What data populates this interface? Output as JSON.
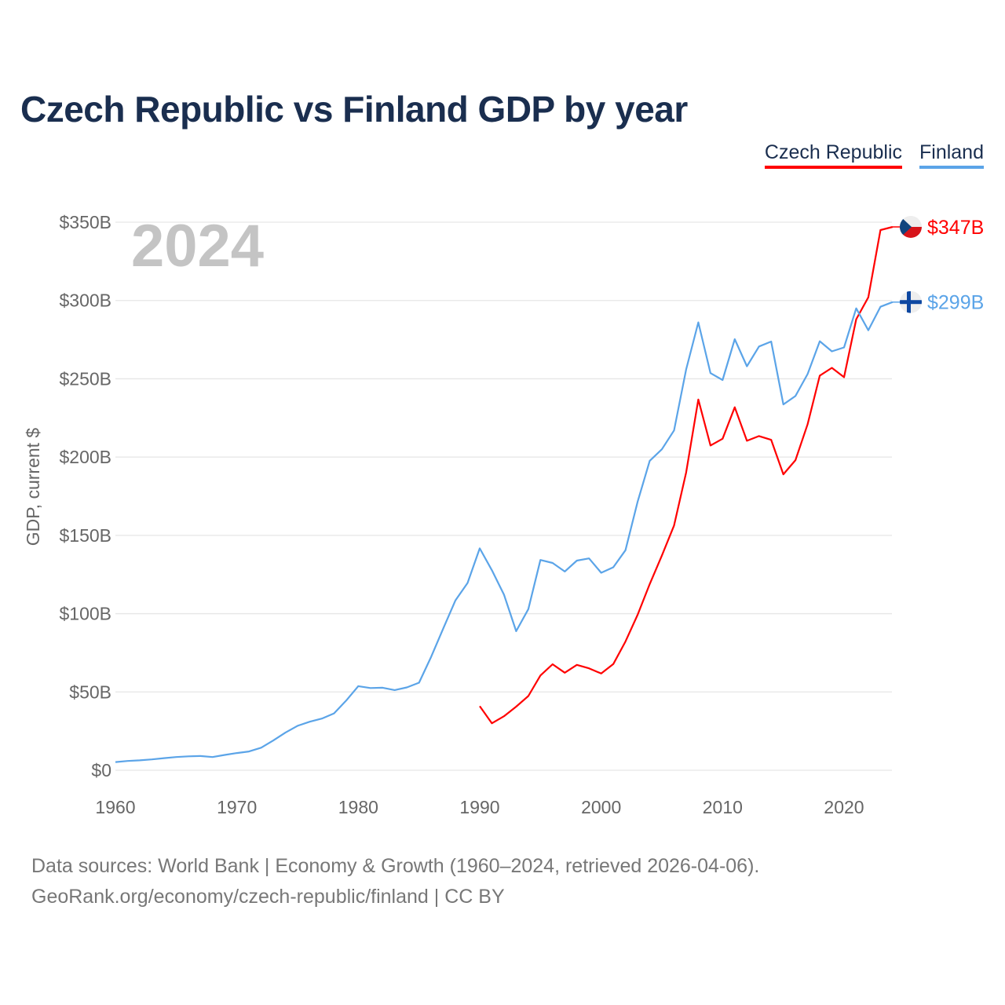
{
  "chart_data": {
    "type": "line",
    "title": "Czech Republic vs Finland GDP by year",
    "ylabel": "GDP, current $",
    "xlabel": "",
    "xlim": [
      1960,
      2024
    ],
    "ylim": [
      0,
      350
    ],
    "x_ticks": [
      1960,
      1970,
      1980,
      1990,
      2000,
      2010,
      2020
    ],
    "x_tick_labels": [
      "1960",
      "1970",
      "1980",
      "1990",
      "2000",
      "2010",
      "2020"
    ],
    "y_ticks": [
      0,
      50,
      100,
      150,
      200,
      250,
      300,
      350
    ],
    "y_tick_labels": [
      "$0",
      "$50B",
      "$100B",
      "$150B",
      "$200B",
      "$250B",
      "$300B",
      "$350B"
    ],
    "grid": true,
    "legend_position": "top-right",
    "year_overlay": "2024",
    "series": [
      {
        "name": "Czech Republic",
        "color": "#ff0000",
        "end_label": "$347B",
        "x": [
          1990,
          1991,
          1992,
          1993,
          1994,
          1995,
          1996,
          1997,
          1998,
          1999,
          2000,
          2001,
          2002,
          2003,
          2004,
          2005,
          2006,
          2007,
          2008,
          2009,
          2010,
          2011,
          2012,
          2013,
          2014,
          2015,
          2016,
          2017,
          2018,
          2019,
          2020,
          2021,
          2022,
          2023,
          2024
        ],
        "values": [
          40.9,
          30.0,
          34.5,
          40.6,
          47.4,
          60.5,
          67.7,
          62.3,
          67.3,
          65.1,
          61.8,
          67.8,
          82.2,
          99.3,
          118.9,
          137.1,
          156.3,
          190.2,
          236.8,
          207.4,
          211.7,
          231.8,
          210.4,
          213.4,
          211.0,
          189.0,
          198.0,
          221.0,
          252.0,
          257.0,
          251.0,
          288.0,
          302.0,
          345.0,
          347.0
        ]
      },
      {
        "name": "Finland",
        "color": "#5ba4e8",
        "end_label": "$299B",
        "x": [
          1960,
          1961,
          1962,
          1963,
          1964,
          1965,
          1966,
          1967,
          1968,
          1969,
          1970,
          1971,
          1972,
          1973,
          1974,
          1975,
          1976,
          1977,
          1978,
          1979,
          1980,
          1981,
          1982,
          1983,
          1984,
          1985,
          1986,
          1987,
          1988,
          1989,
          1990,
          1991,
          1992,
          1993,
          1994,
          1995,
          1996,
          1997,
          1998,
          1999,
          2000,
          2001,
          2002,
          2003,
          2004,
          2005,
          2006,
          2007,
          2008,
          2009,
          2010,
          2011,
          2012,
          2013,
          2014,
          2015,
          2016,
          2017,
          2018,
          2019,
          2020,
          2021,
          2022,
          2023,
          2024
        ],
        "values": [
          5.2,
          5.9,
          6.3,
          6.9,
          7.7,
          8.4,
          8.9,
          9.1,
          8.4,
          9.8,
          11.0,
          12.0,
          14.4,
          19.0,
          24.0,
          28.4,
          31.0,
          33.0,
          36.3,
          44.5,
          53.7,
          52.5,
          52.7,
          51.2,
          52.9,
          55.9,
          72.4,
          90.6,
          108.5,
          119.6,
          141.7,
          127.7,
          112.1,
          88.8,
          102.9,
          134.3,
          132.4,
          126.9,
          133.9,
          135.3,
          126.1,
          129.6,
          140.5,
          171.5,
          197.6,
          205.0,
          217.0,
          256.0,
          286.0,
          253.6,
          249.2,
          275.3,
          258.0,
          270.6,
          273.8,
          233.6,
          239.0,
          253.0,
          274.0,
          267.5,
          270.0,
          295.0,
          281.0,
          296.0,
          299.0
        ]
      }
    ]
  },
  "footer": {
    "line1": "Data sources: World Bank | Economy & Growth (1960–2024, retrieved 2026-04-06).",
    "line2": "GeoRank.org/economy/czech-republic/finland | CC BY"
  }
}
